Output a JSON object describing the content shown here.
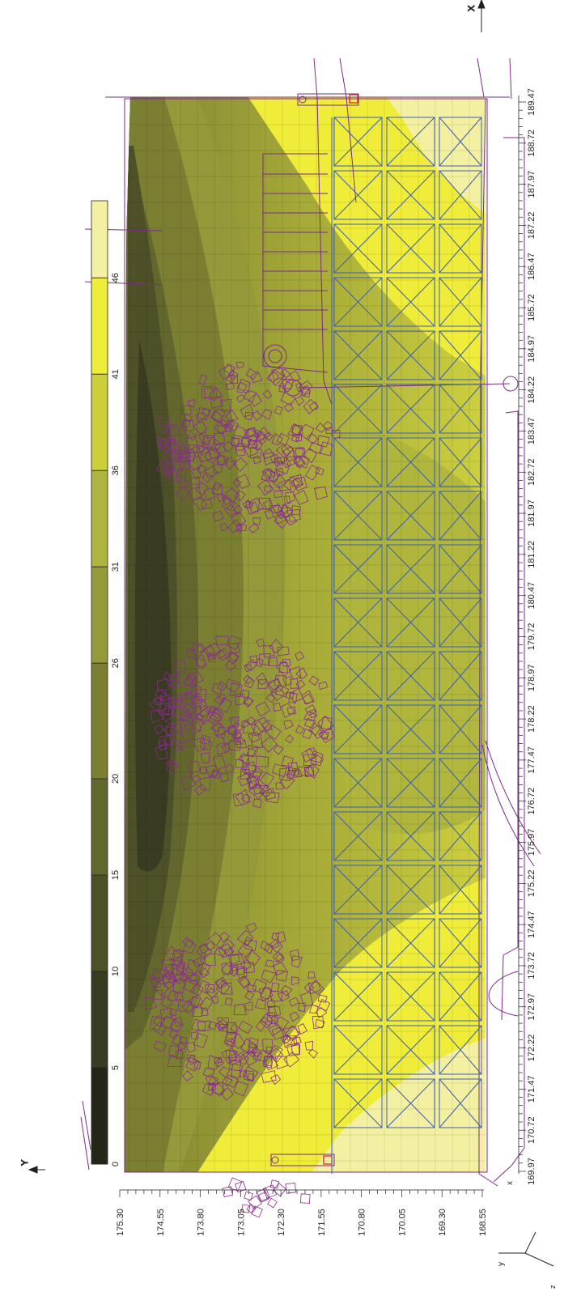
{
  "figure": {
    "x_axis_label": "X",
    "y_axis_label": "Y",
    "triad": {
      "x": "x",
      "y": "y",
      "z": "z"
    }
  },
  "legend": {
    "values": [
      "0",
      "5",
      "10",
      "15",
      "20",
      "26",
      "31",
      "36",
      "41",
      "46"
    ],
    "colors": [
      "#25251a",
      "#3a3c22",
      "#4e5128",
      "#63672d",
      "#7b7f32",
      "#94993a",
      "#aeb43d",
      "#cccf3a",
      "#efec3a",
      "#f4f0a2"
    ]
  },
  "x_axis": {
    "ticks": [
      "169.97",
      "170.72",
      "171.47",
      "172.22",
      "172.97",
      "173.72",
      "174.47",
      "175.22",
      "175.97",
      "176.72",
      "177.47",
      "178.22",
      "178.97",
      "179.72",
      "180.47",
      "181.22",
      "181.97",
      "182.72",
      "183.47",
      "184.22",
      "184.97",
      "185.72",
      "186.47",
      "187.22",
      "187.97",
      "188.72",
      "189.47"
    ]
  },
  "y_axis": {
    "ticks": [
      "175.30",
      "174.55",
      "173.80",
      "173.05",
      "172.30",
      "171.55",
      "170.80",
      "170.05",
      "169.30",
      "168.55"
    ]
  },
  "canopies": [
    {
      "name": "tree-canopy-top",
      "x": 183.2,
      "y": 172.9
    },
    {
      "name": "tree-canopy-middle",
      "x": 178.2,
      "y": 173.0
    },
    {
      "name": "tree-canopy-bottom",
      "x": 172.9,
      "y": 173.1
    }
  ],
  "colors": {
    "outline": "#7a2c86",
    "grid": "#3c5fb0",
    "marker": "#d0202a"
  }
}
